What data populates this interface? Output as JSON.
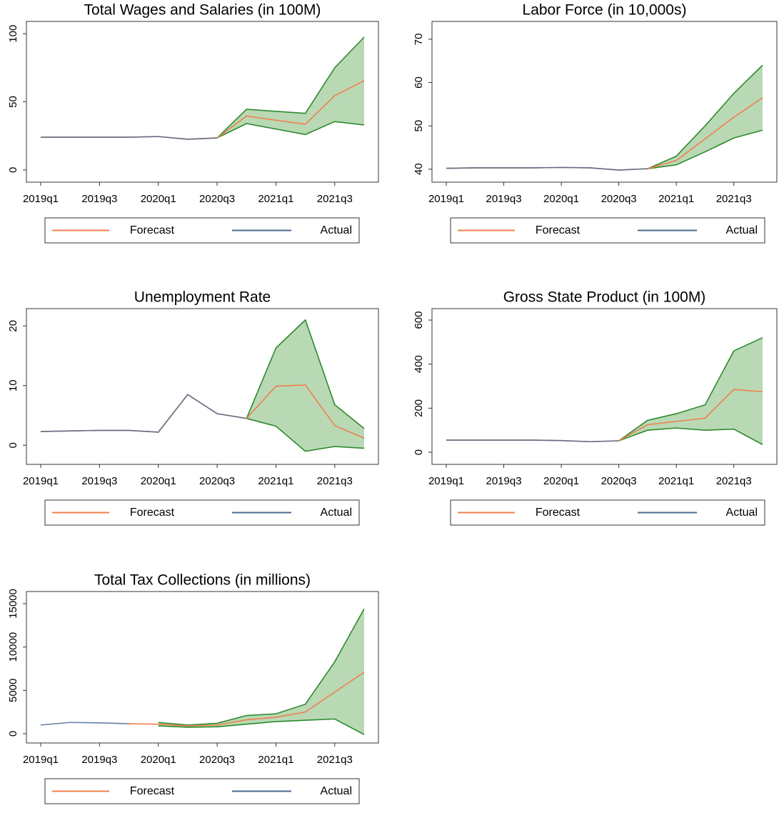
{
  "chart_data": [
    {
      "type": "line",
      "title": "Total Wages and Salaries (in 100M)",
      "categories": [
        "2019q1",
        null,
        "2019q3",
        null,
        "2020q1",
        null,
        "2020q3",
        null,
        "2021q1",
        null,
        "2021q3",
        null
      ],
      "ylim": [
        -9,
        109
      ],
      "yticks": [
        0,
        50,
        100
      ],
      "series": [
        {
          "name": "Forecast",
          "color": "#f07f4e",
          "values": [
            24,
            24,
            24,
            24,
            24.5,
            22.5,
            23.5,
            39.5,
            36.5,
            33.5,
            54.5,
            65.5
          ]
        },
        {
          "name": "Actual",
          "color": "#4a6a8f",
          "values": [
            24,
            24,
            24,
            24,
            24.5,
            22.5,
            23.5,
            null,
            null,
            null,
            null,
            null
          ]
        }
      ],
      "band": {
        "color": "#2d8a2d",
        "fill": "#b9d9b5",
        "upper": [
          null,
          null,
          null,
          null,
          null,
          null,
          23.5,
          44.5,
          43,
          41.5,
          75,
          97.5
        ],
        "lower": [
          null,
          null,
          null,
          null,
          null,
          null,
          23.5,
          34,
          30,
          26,
          35.5,
          33
        ]
      }
    },
    {
      "type": "line",
      "title": "Labor Force (in 10,000s)",
      "categories": [
        "2019q1",
        null,
        "2019q3",
        null,
        "2020q1",
        null,
        "2020q3",
        null,
        "2021q1",
        null,
        "2021q3",
        null
      ],
      "ylim": [
        37,
        74.1
      ],
      "yticks": [
        40,
        50,
        60,
        70
      ],
      "series": [
        {
          "name": "Forecast",
          "color": "#f07f4e",
          "values": [
            40.2,
            40.3,
            40.3,
            40.3,
            40.4,
            40.3,
            39.8,
            40.1,
            42,
            47,
            52,
            56.5
          ]
        },
        {
          "name": "Actual",
          "color": "#4a6a8f",
          "values": [
            40.2,
            40.3,
            40.3,
            40.3,
            40.4,
            40.3,
            39.8,
            40.1,
            null,
            null,
            null,
            null
          ]
        }
      ],
      "band": {
        "color": "#2d8a2d",
        "fill": "#b9d9b5",
        "upper": [
          null,
          null,
          null,
          null,
          null,
          null,
          null,
          40.1,
          43,
          50,
          57.5,
          64
        ],
        "lower": [
          null,
          null,
          null,
          null,
          null,
          null,
          null,
          40.1,
          41,
          44,
          47.2,
          49
        ]
      }
    },
    {
      "type": "line",
      "title": "Unemployment Rate",
      "categories": [
        "2019q1",
        null,
        "2019q3",
        null,
        "2020q1",
        null,
        "2020q3",
        null,
        "2021q1",
        null,
        "2021q3",
        null
      ],
      "ylim": [
        -3.2,
        22.9
      ],
      "yticks": [
        0,
        10,
        20
      ],
      "series": [
        {
          "name": "Forecast",
          "color": "#f07f4e",
          "values": [
            2.3,
            2.4,
            2.5,
            2.5,
            2.2,
            8.5,
            5.3,
            4.5,
            9.9,
            10.1,
            3.3,
            1.2
          ]
        },
        {
          "name": "Actual",
          "color": "#4a6a8f",
          "values": [
            2.3,
            2.4,
            2.5,
            2.5,
            2.2,
            8.5,
            5.3,
            4.5,
            null,
            null,
            null,
            null
          ]
        }
      ],
      "band": {
        "color": "#2d8a2d",
        "fill": "#b9d9b5",
        "upper": [
          null,
          null,
          null,
          null,
          null,
          null,
          null,
          4.5,
          16.3,
          21,
          6.8,
          2.8
        ],
        "lower": [
          null,
          null,
          null,
          null,
          null,
          null,
          null,
          4.5,
          3.2,
          -1,
          -0.2,
          -0.5
        ]
      }
    },
    {
      "type": "line",
      "title": "Gross State Product (in 100M)",
      "categories": [
        "2019q1",
        null,
        "2019q3",
        null,
        "2020q1",
        null,
        "2020q3",
        null,
        "2021q1",
        null,
        "2021q3",
        null
      ],
      "ylim": [
        -55,
        652
      ],
      "yticks": [
        0,
        200,
        400,
        600
      ],
      "series": [
        {
          "name": "Forecast",
          "color": "#f07f4e",
          "values": [
            55,
            55,
            55,
            55,
            53,
            48,
            52,
            125,
            140,
            155,
            285,
            275
          ]
        },
        {
          "name": "Actual",
          "color": "#4a6a8f",
          "values": [
            55,
            55,
            55,
            55,
            53,
            48,
            52,
            null,
            null,
            null,
            null,
            null
          ]
        }
      ],
      "band": {
        "color": "#2d8a2d",
        "fill": "#b9d9b5",
        "upper": [
          null,
          null,
          null,
          null,
          null,
          null,
          52,
          145,
          175,
          215,
          460,
          520
        ],
        "lower": [
          null,
          null,
          null,
          null,
          null,
          null,
          52,
          100,
          110,
          100,
          105,
          35
        ]
      }
    },
    {
      "type": "line",
      "title": "Total Tax Collections (in millions)",
      "categories": [
        "2019q1",
        null,
        "2019q3",
        null,
        "2020q1",
        null,
        "2020q3",
        null,
        "2021q1",
        null,
        "2021q3",
        null
      ],
      "ylim": [
        -1070,
        16400
      ],
      "yticks": [
        0,
        5000,
        10000,
        15000
      ],
      "series": [
        {
          "name": "Forecast",
          "color": "#f07f4e",
          "values": [
            null,
            null,
            null,
            1150,
            1100,
            900,
            1000,
            1600,
            1900,
            2500,
            4800,
            7100
          ]
        },
        {
          "name": "Actual",
          "color": "#4a6a8f",
          "values": [
            1000,
            1300,
            1250,
            1150,
            null,
            null,
            null,
            null,
            null,
            null,
            null,
            null
          ]
        }
      ],
      "band": {
        "color": "#2d8a2d",
        "fill": "#b9d9b5",
        "upper": [
          null,
          null,
          null,
          null,
          1300,
          1000,
          1200,
          2100,
          2300,
          3400,
          8300,
          14400
        ],
        "lower": [
          null,
          null,
          null,
          null,
          900,
          750,
          800,
          1100,
          1400,
          1550,
          1700,
          -100
        ]
      }
    }
  ]
}
